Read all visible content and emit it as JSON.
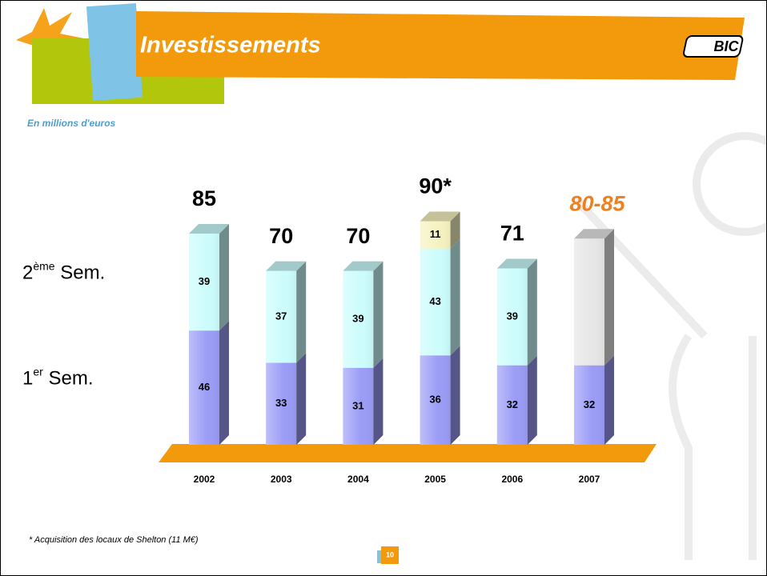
{
  "header": {
    "title": "Investissements",
    "logo": "BIC"
  },
  "subtitle": "En millions d'euros",
  "chart_data": {
    "type": "bar3d-stacked",
    "categories": [
      "2002",
      "2003",
      "2004",
      "2005",
      "2006",
      "2007"
    ],
    "series": [
      {
        "name": "1er Sem.",
        "color": "#9a9cf6",
        "values": [
          46,
          33,
          31,
          36,
          32,
          32
        ]
      },
      {
        "color": "#ccfcfc",
        "values": [
          39,
          37,
          39,
          43,
          39,
          null
        ]
      },
      {
        "color": "#f6f2c0",
        "values": [
          null,
          null,
          null,
          11,
          null,
          null
        ]
      },
      {
        "color": "#e6e6e6",
        "values": [
          null,
          null,
          null,
          null,
          null,
          51
        ],
        "show_labels": false
      }
    ],
    "series_legend": [
      {
        "series": 0,
        "name": "1er Sem."
      },
      {
        "series": 1,
        "name": "2ème Sem."
      }
    ],
    "totals": [
      "85",
      "70",
      "70",
      "90*",
      "71",
      "80-85"
    ],
    "total_colors": [
      "#000000",
      "#000000",
      "#000000",
      "#000000",
      "#000000",
      "#f07f1d"
    ],
    "ylim": [
      0,
      95
    ],
    "floor_color": "#f39a0c"
  },
  "footnote": "* Acquisition des locaux de Shelton (11 M€)",
  "page_number": "10"
}
